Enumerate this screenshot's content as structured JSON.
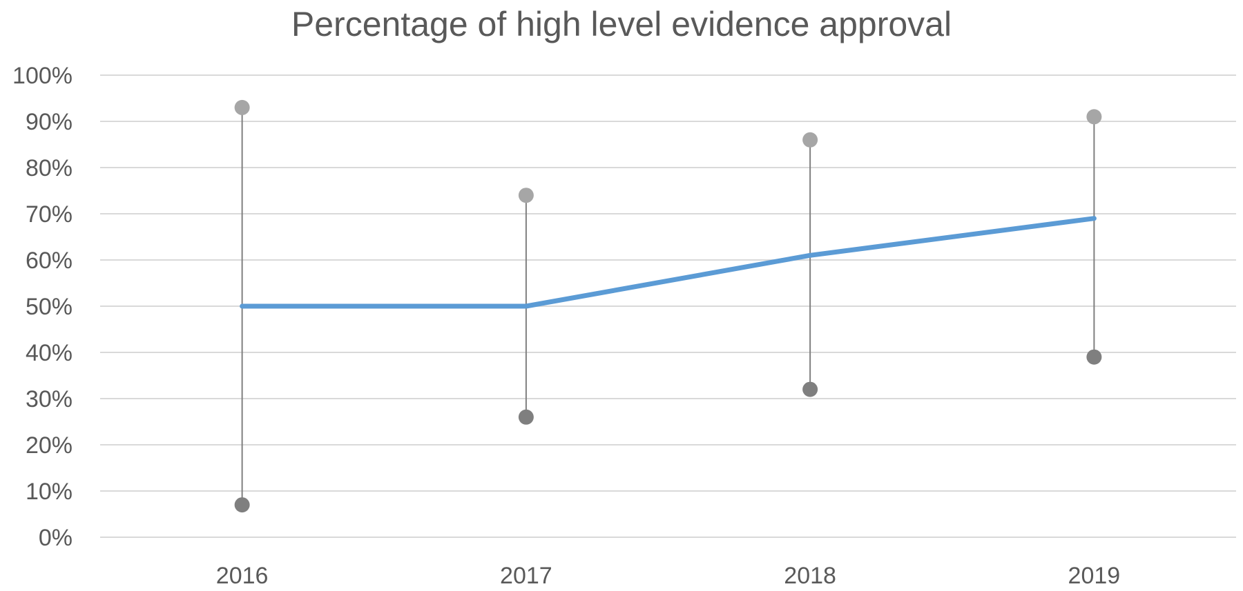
{
  "chart_data": {
    "type": "line",
    "title": "Percentage of high level evidence approval",
    "xlabel": "",
    "ylabel": "",
    "categories": [
      "2016",
      "2017",
      "2018",
      "2019"
    ],
    "ylim": [
      0,
      100
    ],
    "y_ticks": [
      0,
      10,
      20,
      30,
      40,
      50,
      60,
      70,
      80,
      90,
      100
    ],
    "y_tick_labels": [
      "0%",
      "10%",
      "20%",
      "30%",
      "40%",
      "50%",
      "60%",
      "70%",
      "80%",
      "90%",
      "100%"
    ],
    "grid": true,
    "legend": "none",
    "series": [
      {
        "values": [
          50,
          50,
          61,
          69
        ],
        "color": "#5b9bd5"
      }
    ],
    "ranges": {
      "high": [
        93,
        74,
        86,
        91
      ],
      "low": [
        7,
        26,
        32,
        39
      ],
      "high_color": "#a6a6a6",
      "low_color": "#7f7f7f",
      "line_color": "#7f7f7f"
    }
  }
}
